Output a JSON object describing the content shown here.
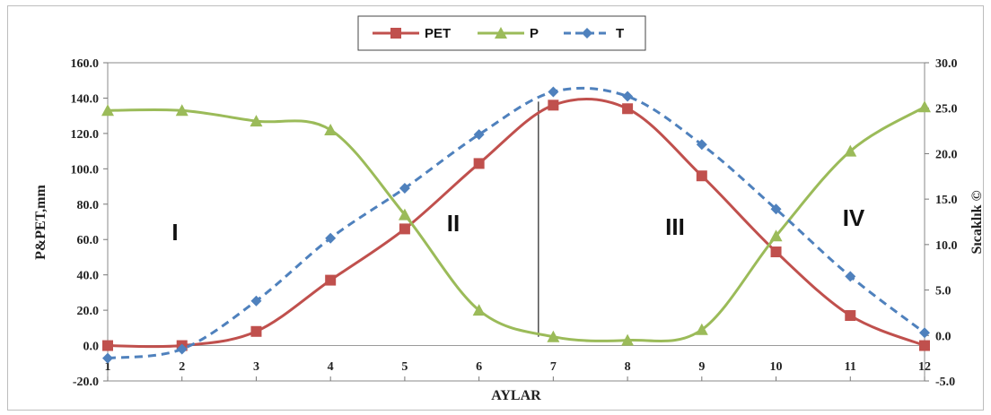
{
  "chart_data": {
    "type": "line",
    "x": [
      1,
      2,
      3,
      4,
      5,
      6,
      7,
      8,
      9,
      10,
      11,
      12
    ],
    "xlabel": "AYLAR",
    "ylabel": "P&PET,mm",
    "y2label": "Sıcaklık ©",
    "ylim": [
      -20,
      160
    ],
    "y2lim": [
      -5,
      30
    ],
    "yticks": [
      "-20.0",
      "0.0",
      "20.0",
      "40.0",
      "60.0",
      "80.0",
      "100.0",
      "120.0",
      "140.0",
      "160.0"
    ],
    "y2ticks": [
      "-5.0",
      "0.0",
      "5.0",
      "10.0",
      "15.0",
      "20.0",
      "25.0",
      "30.0"
    ],
    "xticks": [
      "1",
      "2",
      "3",
      "4",
      "5",
      "6",
      "7",
      "8",
      "9",
      "10",
      "11",
      "12"
    ],
    "series": [
      {
        "name": "PET",
        "axis": "left",
        "color": "#c0504d",
        "marker": "square",
        "dash": false,
        "values": [
          0,
          0,
          8,
          37,
          66,
          103,
          136,
          134,
          96,
          53,
          17,
          0
        ]
      },
      {
        "name": "P",
        "axis": "left",
        "color": "#9bbb59",
        "marker": "triangle",
        "dash": false,
        "values": [
          133,
          133,
          127,
          122,
          74,
          20,
          5,
          3,
          9,
          62,
          110,
          135
        ]
      },
      {
        "name": "T",
        "axis": "right",
        "color": "#4f81bd",
        "marker": "diamond",
        "dash": true,
        "values": [
          -2.5,
          -1.5,
          3.8,
          10.7,
          16.2,
          22.1,
          26.8,
          26.3,
          21.0,
          13.9,
          6.5,
          0.3
        ]
      }
    ],
    "regions": [
      "I",
      "II",
      "III",
      "IV"
    ],
    "divider_x": 6.8,
    "legend_position": "top-center",
    "grid": false
  }
}
